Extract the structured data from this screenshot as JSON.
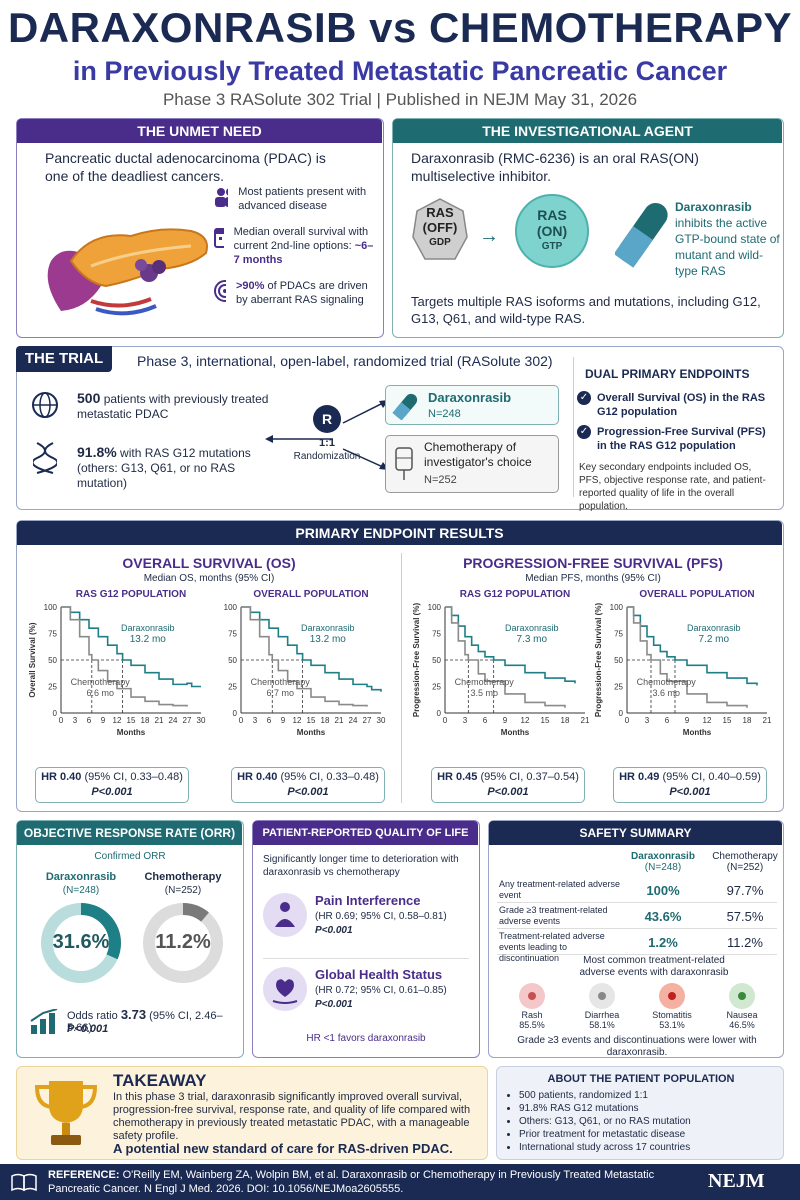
{
  "header": {
    "title": "DARAXONRASIB vs CHEMOTHERAPY",
    "subtitle": "in Previously Treated Metastatic Pancreatic Cancer",
    "meta": "Phase 3 RASolute 302 Trial  |  Published in NEJM May 31, 2026"
  },
  "unmet": {
    "title": "THE UNMET NEED",
    "intro": "Pancreatic ductal adenocarcinoma (PDAC) is one of the deadliest cancers.",
    "items": [
      {
        "text": "Most patients present with advanced disease",
        "icon": "people-icon"
      },
      {
        "text": "Median overall survival with current 2nd-line options:",
        "strong": "~6–7 months",
        "icon": "calendar-icon"
      },
      {
        "strong": ">90%",
        "text": " of PDACs are driven by aberrant RAS signaling",
        "icon": "target-icon"
      }
    ]
  },
  "agent": {
    "title": "THE INVESTIGATIONAL AGENT",
    "intro": "Daraxonrasib (RMC-6236) is an oral RAS(ON) multiselective inhibitor.",
    "ras_off": [
      "RAS",
      "(OFF)",
      "GDP"
    ],
    "ras_on": [
      "RAS",
      "(ON)",
      "GTP"
    ],
    "drug_name": "Daraxonrasib",
    "drug_desc": "inhibits the active GTP-bound state of mutant and wild-type RAS",
    "targets": "Targets multiple RAS isoforms and mutations, including G12, G13, Q61, and wild-type RAS."
  },
  "trial": {
    "title": "THE TRIAL",
    "desc": "Phase 3, international, open-label, randomized trial (RASolute 302)",
    "patients_strong": "500",
    "patients": " patients with previously treated metastatic PDAC",
    "g12_strong": "91.8%",
    "g12": " with RAS G12 mutations (others: G13, Q61, or no RAS mutation)",
    "r": "R",
    "ratio": "1:1",
    "randomization": "Randomization",
    "arm1_name": "Daraxonrasib",
    "arm1_n": "N=248",
    "arm2_name": "Chemotherapy of investigator's choice",
    "arm2_n": "N=252",
    "endpoints_title": "DUAL PRIMARY ENDPOINTS",
    "endpoints": [
      "Overall Survival (OS) in the RAS G12 population",
      "Progression-Free Survival (PFS) in the RAS G12 population"
    ],
    "secondary": "Key secondary endpoints included OS, PFS, objective response rate, and patient-reported quality of life in the overall population."
  },
  "results": {
    "title": "PRIMARY ENDPOINT RESULTS",
    "os_title": "OVERALL SURVIVAL (OS)",
    "os_sub": "Median OS, months (95% CI)",
    "pfs_title": "PROGRESSION-FREE SURVIVAL (PFS)",
    "pfs_sub": "Median PFS, months (95% CI)",
    "plots": [
      {
        "title": "RAS G12 POPULATION",
        "ylabel": "Overall Survival (%)",
        "drug_label": "Daraxonrasib",
        "drug_med": "13.2 mo",
        "chemo_label": "Chemotherapy",
        "chemo_med": "6.6 mo",
        "hr": "HR 0.40",
        "ci": " (95% CI, 0.33–0.48)",
        "p": "P<0.001"
      },
      {
        "title": "OVERALL POPULATION",
        "ylabel": "",
        "drug_label": "Daraxonrasib",
        "drug_med": "13.2 mo",
        "chemo_label": "Chemotherapy",
        "chemo_med": "6.7 mo",
        "hr": "HR 0.40",
        "ci": " (95% CI, 0.33–0.48)",
        "p": "P<0.001"
      },
      {
        "title": "RAS G12 POPULATION",
        "ylabel": "Progression-Free Survival (%)",
        "drug_label": "Daraxonrasib",
        "drug_med": "7.3 mo",
        "chemo_label": "Chemotherapy",
        "chemo_med": "3.5 mo",
        "hr": "HR 0.45",
        "ci": " (95% CI, 0.37–0.54)",
        "p": "P<0.001"
      },
      {
        "title": "OVERALL POPULATION",
        "ylabel": "Progression-Free Survival (%)",
        "drug_label": "Daraxonrasib",
        "drug_med": "7.2 mo",
        "chemo_label": "Chemotherapy",
        "chemo_med": "3.6 mo",
        "hr": "HR 0.49",
        "ci": " (95% CI, 0.40–0.59)",
        "p": "P<0.001"
      }
    ],
    "xlabel": "Months"
  },
  "chart_data": [
    {
      "type": "line",
      "title": "RAS G12 POPULATION",
      "ylabel": "Overall Survival (%)",
      "xlabel": "Months",
      "xlim": [
        0,
        30
      ],
      "ylim": [
        0,
        100
      ],
      "xticks": [
        0,
        3,
        6,
        9,
        12,
        15,
        18,
        21,
        24,
        27,
        30
      ],
      "yticks": [
        0,
        25,
        50,
        75,
        100
      ],
      "series": [
        {
          "name": "Daraxonrasib",
          "x": [
            0,
            2,
            4,
            6,
            8,
            10,
            12,
            13.2,
            15,
            18,
            21,
            24,
            27,
            28,
            30
          ],
          "y": [
            100,
            95,
            88,
            80,
            72,
            64,
            56,
            50,
            45,
            38,
            32,
            27,
            28,
            25,
            25
          ]
        },
        {
          "name": "Chemotherapy",
          "x": [
            0,
            2,
            4,
            6,
            6.6,
            8,
            10,
            12,
            15,
            18,
            21,
            24,
            27
          ],
          "y": [
            100,
            88,
            72,
            55,
            50,
            40,
            30,
            23,
            15,
            11,
            8,
            7,
            6
          ]
        }
      ]
    },
    {
      "type": "line",
      "title": "OVERALL POPULATION",
      "xlabel": "Months",
      "xlim": [
        0,
        30
      ],
      "ylim": [
        0,
        100
      ],
      "xticks": [
        0,
        3,
        6,
        9,
        12,
        15,
        18,
        21,
        24,
        27,
        30
      ],
      "yticks": [
        0,
        25,
        50,
        75,
        100
      ],
      "series": [
        {
          "name": "Daraxonrasib",
          "x": [
            0,
            2,
            4,
            6,
            8,
            10,
            12,
            13.2,
            15,
            18,
            21,
            24,
            27,
            28,
            30
          ],
          "y": [
            100,
            95,
            88,
            80,
            72,
            64,
            56,
            50,
            45,
            38,
            32,
            27,
            25,
            22,
            20
          ]
        },
        {
          "name": "Chemotherapy",
          "x": [
            0,
            2,
            4,
            6,
            6.7,
            8,
            10,
            12,
            15,
            18,
            21,
            24,
            27
          ],
          "y": [
            100,
            88,
            72,
            55,
            50,
            40,
            30,
            23,
            15,
            11,
            8,
            7,
            6
          ]
        }
      ]
    },
    {
      "type": "line",
      "title": "RAS G12 POPULATION",
      "ylabel": "Progression-Free Survival (%)",
      "xlabel": "Months",
      "xlim": [
        0,
        21
      ],
      "ylim": [
        0,
        100
      ],
      "xticks": [
        0,
        3,
        6,
        9,
        12,
        15,
        18,
        21
      ],
      "yticks": [
        0,
        25,
        50,
        75,
        100
      ],
      "series": [
        {
          "name": "Daraxonrasib",
          "x": [
            0,
            1,
            2,
            3,
            4,
            5,
            6,
            7.3,
            9,
            12,
            15,
            18,
            19.5
          ],
          "y": [
            100,
            92,
            82,
            72,
            64,
            58,
            53,
            50,
            45,
            38,
            33,
            30,
            28
          ]
        },
        {
          "name": "Chemotherapy",
          "x": [
            0,
            1,
            2,
            3,
            3.5,
            5,
            6,
            9,
            12,
            15,
            18
          ],
          "y": [
            100,
            85,
            68,
            55,
            50,
            37,
            30,
            18,
            10,
            7,
            5
          ]
        }
      ]
    },
    {
      "type": "line",
      "title": "OVERALL POPULATION",
      "ylabel": "Progression-Free Survival (%)",
      "xlabel": "Months",
      "xlim": [
        0,
        21
      ],
      "ylim": [
        0,
        100
      ],
      "xticks": [
        0,
        3,
        6,
        9,
        12,
        15,
        18,
        21
      ],
      "yticks": [
        0,
        25,
        50,
        75,
        100
      ],
      "series": [
        {
          "name": "Daraxonrasib",
          "x": [
            0,
            1,
            2,
            3,
            4,
            5,
            6,
            7.2,
            9,
            12,
            15,
            18,
            19.5
          ],
          "y": [
            100,
            92,
            82,
            72,
            64,
            58,
            53,
            50,
            45,
            38,
            33,
            28,
            26
          ]
        },
        {
          "name": "Chemotherapy",
          "x": [
            0,
            1,
            2,
            3,
            3.6,
            5,
            6,
            9,
            12,
            15,
            18
          ],
          "y": [
            100,
            85,
            68,
            55,
            50,
            37,
            30,
            18,
            10,
            7,
            5
          ]
        }
      ]
    },
    {
      "type": "pie",
      "title": "Confirmed ORR",
      "categories": [
        "Daraxonrasib",
        "Chemotherapy"
      ],
      "values": [
        31.6,
        11.2
      ]
    }
  ],
  "orr": {
    "title": "OBJECTIVE RESPONSE RATE (ORR)",
    "sub": "Confirmed ORR",
    "drug": "Daraxonrasib",
    "drug_n": "(N=248)",
    "drug_val": "31.6%",
    "chemo": "Chemotherapy",
    "chemo_n": "(N=252)",
    "chemo_val": "11.2%",
    "odds_label": "Odds ratio ",
    "odds": "3.73",
    "odds_ci": " (95% CI, 2.46–5.66)",
    "p": "P<0.001"
  },
  "qol": {
    "title": "PATIENT-REPORTED QUALITY OF LIFE",
    "intro": "Significantly longer time to deterioration with daraxonrasib vs chemotherapy",
    "items": [
      {
        "name": "Pain Interference",
        "hr": "(HR 0.69; 95% CI, 0.58–0.81)",
        "p": "P<0.001",
        "icon": "pain-icon"
      },
      {
        "name": "Global Health Status",
        "hr": "(HR 0.72; 95% CI, 0.61–0.85)",
        "p": "P<0.001",
        "icon": "heart-hand-icon"
      }
    ],
    "note": "HR <1 favors daraxonrasib"
  },
  "safety": {
    "title": "SAFETY SUMMARY",
    "col1": "Daraxonrasib",
    "col1_n": "(N=248)",
    "col2": "Chemotherapy",
    "col2_n": "(N=252)",
    "rows": [
      {
        "label": "Any treatment-related adverse event",
        "v1": "100%",
        "v2": "97.7%"
      },
      {
        "label": "Grade ≥3 treatment-related adverse events",
        "v1": "43.6%",
        "v2": "57.5%"
      },
      {
        "label": "Treatment-related adverse events leading to discontinuation",
        "v1": "1.2%",
        "v2": "11.2%"
      }
    ],
    "common_title": "Most common treatment-related adverse events with daraxonrasib",
    "events": [
      {
        "name": "Rash",
        "val": "85.5%",
        "icon": "rash-icon"
      },
      {
        "name": "Diarrhea",
        "val": "58.1%",
        "icon": "toilet-icon"
      },
      {
        "name": "Stomatitis",
        "val": "53.1%",
        "icon": "mouth-icon"
      },
      {
        "name": "Nausea",
        "val": "46.5%",
        "icon": "nausea-icon"
      }
    ],
    "footer": "Grade ≥3 events and discontinuations were lower with daraxonrasib."
  },
  "takeaway": {
    "title": "TAKEAWAY",
    "text": "In this phase 3 trial, daraxonrasib significantly improved overall survival, progression-free survival, response rate, and quality of life compared with chemotherapy in previously treated metastatic PDAC, with a manageable safety profile.",
    "emph": "A potential new standard of care for RAS-driven PDAC."
  },
  "population": {
    "title": "ABOUT THE PATIENT POPULATION",
    "items": [
      "500 patients, randomized 1:1",
      "91.8% RAS G12 mutations",
      "Others: G13, Q61, or no RAS mutation",
      "Prior treatment for metastatic disease",
      "International study across 17 countries"
    ]
  },
  "reference": {
    "label": "REFERENCE:",
    "text": " O'Reilly EM, Wainberg ZA, Wolpin BM, et al. Daraxonrasib or Chemotherapy in Previously Treated Metastatic Pancreatic Cancer. N Engl J Med. 2026. DOI: 10.1056/NEJMoa2605555.",
    "journal": "NEJM"
  },
  "colors": {
    "navy": "#1b2a52",
    "purple": "#4a2d8a",
    "teal": "#1f6b72",
    "drug": "#1e7f87",
    "chemo": "#8a8a8a",
    "gold": "#e0a21a"
  }
}
